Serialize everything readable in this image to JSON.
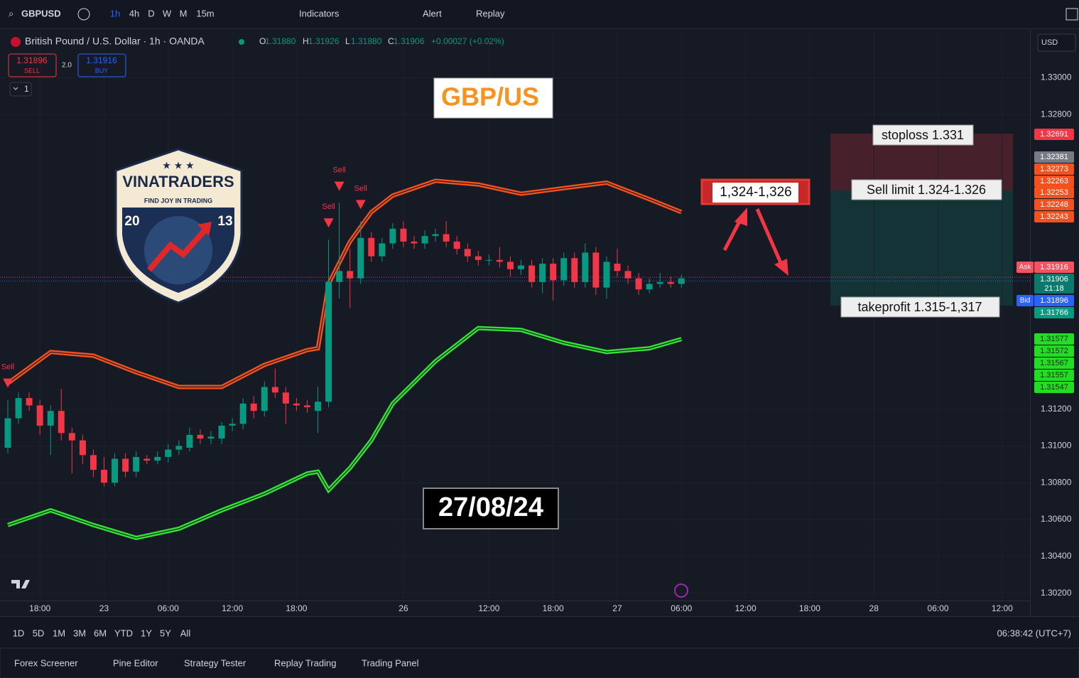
{
  "toolbar": {
    "symbol": "GBPUSD",
    "intervals": [
      "1h",
      "4h",
      "D",
      "W",
      "M",
      "15m"
    ],
    "indicators": "Indicators",
    "alert": "Alert",
    "replay": "Replay"
  },
  "header": {
    "title": "British Pound / U.S. Dollar · 1h · OANDA",
    "ohlc": [
      {
        "label": "O",
        "value": "1.31880"
      },
      {
        "label": "H",
        "value": "1.31926"
      },
      {
        "label": "L",
        "value": "1.31880"
      },
      {
        "label": "C",
        "value": "1.31906"
      }
    ],
    "change": "+0.00027 (+0.02%)",
    "sell": {
      "price": "1.31896",
      "label": "SELL"
    },
    "spread": "2.0",
    "buy": {
      "price": "1.31916",
      "label": "BUY"
    },
    "indicator_count": "1",
    "currency": "USD"
  },
  "chart_data": {
    "type": "candlestick",
    "up_color": "#089981",
    "down_color": "#f23645",
    "candles": [
      [
        1.3099,
        1.3125,
        1.3096,
        1.3115
      ],
      [
        1.3115,
        1.3129,
        1.3112,
        1.3126
      ],
      [
        1.3126,
        1.3129,
        1.3119,
        1.3122
      ],
      [
        1.3122,
        1.3125,
        1.3106,
        1.3111
      ],
      [
        1.3111,
        1.3122,
        1.3095,
        1.3119
      ],
      [
        1.3119,
        1.3131,
        1.3103,
        1.3107
      ],
      [
        1.3107,
        1.311,
        1.3085,
        1.3103
      ],
      [
        1.3103,
        1.3106,
        1.309,
        1.3095
      ],
      [
        1.3095,
        1.3098,
        1.3083,
        1.3087
      ],
      [
        1.3087,
        1.3094,
        1.3078,
        1.308
      ],
      [
        1.308,
        1.3096,
        1.3078,
        1.3093
      ],
      [
        1.3093,
        1.3096,
        1.3083,
        1.3086
      ],
      [
        1.3086,
        1.3097,
        1.3083,
        1.3094
      ],
      [
        1.3093,
        1.3095,
        1.309,
        1.3092
      ],
      [
        1.3092,
        1.3097,
        1.309,
        1.3094
      ],
      [
        1.3094,
        1.3101,
        1.3091,
        1.3098
      ],
      [
        1.3098,
        1.3103,
        1.3095,
        1.31
      ],
      [
        1.3099,
        1.311,
        1.3097,
        1.3106
      ],
      [
        1.3106,
        1.3109,
        1.3101,
        1.3104
      ],
      [
        1.3104,
        1.3108,
        1.3101,
        1.3105
      ],
      [
        1.3104,
        1.3113,
        1.3101,
        1.3111
      ],
      [
        1.3111,
        1.3115,
        1.3108,
        1.3112
      ],
      [
        1.3112,
        1.3126,
        1.3109,
        1.3123
      ],
      [
        1.3123,
        1.3127,
        1.3115,
        1.3119
      ],
      [
        1.3119,
        1.3135,
        1.3116,
        1.3132
      ],
      [
        1.3132,
        1.3142,
        1.3126,
        1.3129
      ],
      [
        1.3129,
        1.3132,
        1.3112,
        1.3123
      ],
      [
        1.3123,
        1.3126,
        1.3119,
        1.3122
      ],
      [
        1.3122,
        1.3125,
        1.3118,
        1.3121
      ],
      [
        1.3119,
        1.3132,
        1.3107,
        1.3124
      ],
      [
        1.3124,
        1.3212,
        1.3121,
        1.3189
      ],
      [
        1.3189,
        1.3232,
        1.318,
        1.3195
      ],
      [
        1.3195,
        1.3207,
        1.3175,
        1.3191
      ],
      [
        1.3191,
        1.3222,
        1.3188,
        1.3213
      ],
      [
        1.3213,
        1.3216,
        1.32,
        1.3203
      ],
      [
        1.3203,
        1.3213,
        1.32,
        1.321
      ],
      [
        1.321,
        1.3221,
        1.3207,
        1.3218
      ],
      [
        1.3218,
        1.3222,
        1.3208,
        1.3211
      ],
      [
        1.3211,
        1.3214,
        1.3207,
        1.321
      ],
      [
        1.321,
        1.3217,
        1.3207,
        1.3214
      ],
      [
        1.3214,
        1.3218,
        1.3211,
        1.3215
      ],
      [
        1.3215,
        1.3222,
        1.3208,
        1.3211
      ],
      [
        1.3211,
        1.3214,
        1.3204,
        1.3207
      ],
      [
        1.3207,
        1.321,
        1.32,
        1.3203
      ],
      [
        1.3203,
        1.3206,
        1.3198,
        1.3201
      ],
      [
        1.3201,
        1.3204,
        1.3198,
        1.3201
      ],
      [
        1.3201,
        1.3208,
        1.3197,
        1.32
      ],
      [
        1.32,
        1.3203,
        1.3192,
        1.3196
      ],
      [
        1.3196,
        1.3201,
        1.3193,
        1.3198
      ],
      [
        1.3198,
        1.3201,
        1.3186,
        1.3189
      ],
      [
        1.3189,
        1.3202,
        1.3183,
        1.3199
      ],
      [
        1.3199,
        1.3202,
        1.3179,
        1.319
      ],
      [
        1.319,
        1.3205,
        1.3187,
        1.3202
      ],
      [
        1.3202,
        1.3205,
        1.3186,
        1.3189
      ],
      [
        1.3189,
        1.321,
        1.3186,
        1.3205
      ],
      [
        1.3205,
        1.3208,
        1.3182,
        1.3186
      ],
      [
        1.3186,
        1.3203,
        1.318,
        1.32
      ],
      [
        1.3199,
        1.3207,
        1.3192,
        1.3195
      ],
      [
        1.3195,
        1.3198,
        1.3188,
        1.3191
      ],
      [
        1.3191,
        1.3194,
        1.3182,
        1.3185
      ],
      [
        1.3185,
        1.3191,
        1.3183,
        1.3188
      ],
      [
        1.3188,
        1.3194,
        1.3186,
        1.3189
      ],
      [
        1.3189,
        1.3192,
        1.3186,
        1.3188
      ],
      [
        1.3188,
        1.3193,
        1.3186,
        1.3191
      ]
    ],
    "series": [
      {
        "color": "#f4511e",
        "x": [
          0,
          4,
          8,
          12,
          16,
          20,
          24,
          28,
          29,
          30,
          32,
          34,
          36,
          40,
          44,
          48,
          52,
          56,
          60,
          63
        ],
        "values": [
          1.3134,
          1.3151,
          1.3149,
          1.314,
          1.3132,
          1.3132,
          1.3144,
          1.3152,
          1.3153,
          1.3188,
          1.3211,
          1.3227,
          1.3236,
          1.3244,
          1.3242,
          1.3237,
          1.324,
          1.3243,
          1.3234,
          1.3227
        ]
      },
      {
        "color": "#34e234",
        "x": [
          0,
          4,
          8,
          12,
          16,
          20,
          24,
          28,
          29,
          30,
          32,
          34,
          36,
          40,
          44,
          48,
          52,
          56,
          60,
          63
        ],
        "values": [
          1.3057,
          1.3065,
          1.3057,
          1.305,
          1.3055,
          1.3065,
          1.3074,
          1.3085,
          1.3086,
          1.3076,
          1.3088,
          1.3103,
          1.3123,
          1.3146,
          1.3164,
          1.3163,
          1.3156,
          1.3151,
          1.3153,
          1.3158
        ]
      }
    ],
    "signals": [
      {
        "index": 0,
        "label": "Sell"
      },
      {
        "index": 30,
        "label": "Sell"
      },
      {
        "index": 31,
        "label": "Sell"
      },
      {
        "index": 33,
        "label": "Sell"
      }
    ],
    "xlim": [
      -0.4,
      95.6
    ],
    "ylim": [
      1.3016,
      1.3326
    ],
    "xticks": [
      {
        "value": 3,
        "label": "18:00"
      },
      {
        "value": 9,
        "label": "23"
      },
      {
        "value": 15,
        "label": "06:00"
      },
      {
        "value": 21,
        "label": "12:00"
      },
      {
        "value": 27,
        "label": "18:00"
      },
      {
        "value": 37,
        "label": "26"
      },
      {
        "value": 45,
        "label": "12:00"
      },
      {
        "value": 51,
        "label": "18:00"
      },
      {
        "value": 57,
        "label": "27"
      },
      {
        "value": 63,
        "label": "06:00"
      },
      {
        "value": 69,
        "label": "12:00"
      },
      {
        "value": 75,
        "label": "18:00"
      },
      {
        "value": 81,
        "label": "28"
      },
      {
        "value": 87,
        "label": "06:00"
      },
      {
        "value": 93,
        "label": "12:00"
      }
    ],
    "yticks": [
      {
        "value": 1.33,
        "label": "1.33000"
      },
      {
        "value": 1.328,
        "label": "1.32800"
      },
      {
        "value": 1.312,
        "label": "1.31200"
      },
      {
        "value": 1.31,
        "label": "1.31000"
      },
      {
        "value": 1.308,
        "label": "1.30800"
      },
      {
        "value": 1.306,
        "label": "1.30600"
      },
      {
        "value": 1.304,
        "label": "1.30400"
      },
      {
        "value": 1.302,
        "label": "1.30200"
      }
    ],
    "grid": true
  },
  "price_labels": [
    {
      "label": "1.32691",
      "color": "#f23645",
      "text_color": "#ffffff"
    },
    {
      "label": "1.32381",
      "color": "#787b86",
      "text_color": "#ffffff"
    },
    {
      "label": "1.32273",
      "color": "#f4511e",
      "text_color": "#ffffff"
    },
    {
      "label": "1.32263",
      "color": "#f4511e",
      "text_color": "#ffffff"
    },
    {
      "label": "1.32253",
      "color": "#f4511e",
      "text_color": "#ffffff"
    },
    {
      "label": "1.32248",
      "color": "#f4511e",
      "text_color": "#ffffff"
    },
    {
      "label": "1.32243",
      "color": "#f4511e",
      "text_color": "#ffffff"
    },
    {
      "tag": "Ask",
      "label": "1.31916",
      "color": "#f7525f",
      "text_color": "#ffffff"
    },
    {
      "label": "1.31906",
      "sub": "21:18",
      "color": "#0b7a6c",
      "text_color": "#ffffff"
    },
    {
      "tag": "Bid",
      "label": "1.31896",
      "color": "#2962ff",
      "text_color": "#ffffff"
    },
    {
      "label": "1.31766",
      "color": "#089981",
      "text_color": "#ffffff"
    },
    {
      "label": "1.31577",
      "color": "#22dd22",
      "text_color": "#0b2a0b"
    },
    {
      "label": "1.31572",
      "color": "#22dd22",
      "text_color": "#0b2a0b"
    },
    {
      "label": "1.31567",
      "color": "#22dd22",
      "text_color": "#0b2a0b"
    },
    {
      "label": "1.31557",
      "color": "#22dd22",
      "text_color": "#0b2a0b"
    },
    {
      "label": "1.31547",
      "color": "#22dd22",
      "text_color": "#0b2a0b"
    }
  ],
  "annotations": {
    "pair": "GBP/US",
    "date": "27/08/24",
    "zone": "1,324-1,326",
    "stoploss": "stoploss 1.331",
    "sell_limit": "Sell limit 1.324-1.326",
    "takeprofit": "takeprofit 1.315-1,317"
  },
  "logo": {
    "name": "VINATRADERS",
    "slogan": "FIND JOY IN TRADING",
    "year_left": "20",
    "year_right": "13"
  },
  "bottom": {
    "ranges": [
      "1D",
      "5D",
      "1M",
      "3M",
      "6M",
      "YTD",
      "1Y",
      "5Y",
      "All"
    ],
    "clock": "06:38:42 (UTC+7)",
    "tabs": [
      "Forex Screener",
      "Pine Editor",
      "Strategy Tester",
      "Replay Trading",
      "Trading Panel"
    ]
  }
}
